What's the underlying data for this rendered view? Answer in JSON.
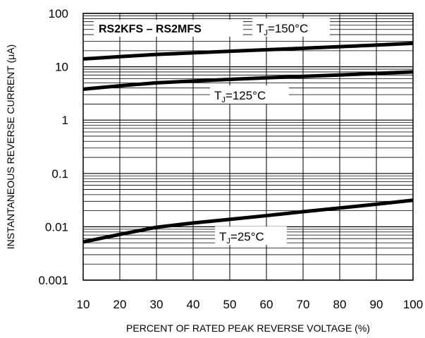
{
  "chart_data": {
    "type": "line",
    "title": "RS2KFS – RS2MFS",
    "xlabel": "PERCENT OF RATED PEAK REVERSE VOLTAGE (%)",
    "ylabel": "INSTANTANEOUS REVERSE CURRENT (μA)",
    "xlim": [
      10,
      100
    ],
    "ylim": [
      0.001,
      100
    ],
    "yscale": "log",
    "grid": true,
    "x_ticks": [
      "10",
      "20",
      "30",
      "40",
      "50",
      "60",
      "70",
      "80",
      "90",
      "100"
    ],
    "y_ticks": [
      "0.001",
      "0.01",
      "0.1",
      "1",
      "10",
      "100"
    ],
    "series": [
      {
        "name": "TJ=150°C",
        "label_main": "T",
        "label_sub": "J",
        "label_rest": "=150°C",
        "x": [
          10,
          20,
          30,
          40,
          50,
          60,
          70,
          80,
          90,
          100
        ],
        "y": [
          14,
          15.5,
          17,
          18.2,
          19.5,
          20.8,
          22.2,
          23.8,
          25.5,
          27.5
        ]
      },
      {
        "name": "TJ=125°C",
        "label_main": "T",
        "label_sub": "J",
        "label_rest": "=125°C",
        "x": [
          10,
          20,
          30,
          40,
          50,
          60,
          70,
          80,
          90,
          100
        ],
        "y": [
          3.8,
          4.4,
          5.0,
          5.4,
          5.8,
          6.2,
          6.6,
          7.0,
          7.5,
          8.0
        ]
      },
      {
        "name": "TJ=25°C",
        "label_main": "T",
        "label_sub": "J",
        "label_rest": "=25°C",
        "x": [
          10,
          20,
          30,
          40,
          50,
          60,
          70,
          80,
          90,
          100
        ],
        "y": [
          0.0052,
          0.0072,
          0.0098,
          0.0118,
          0.0138,
          0.0162,
          0.0192,
          0.0225,
          0.0265,
          0.0315
        ]
      }
    ]
  }
}
